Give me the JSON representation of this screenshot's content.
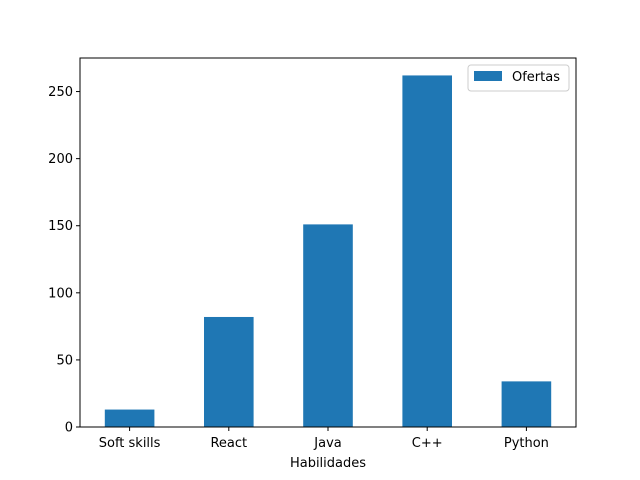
{
  "chart_data": {
    "type": "bar",
    "categories": [
      "Soft skills",
      "React",
      "Java",
      "C++",
      "Python"
    ],
    "series": [
      {
        "name": "Ofertas",
        "values": [
          13,
          82,
          151,
          262,
          34
        ],
        "color": "#1f77b4"
      }
    ],
    "xlabel": "Habilidades",
    "ylabel": "",
    "ylim": [
      0,
      275
    ],
    "yticks": [
      0,
      50,
      100,
      150,
      200,
      250
    ],
    "grid": false,
    "legend": {
      "position": "top-right",
      "entries": [
        "Ofertas"
      ]
    }
  }
}
